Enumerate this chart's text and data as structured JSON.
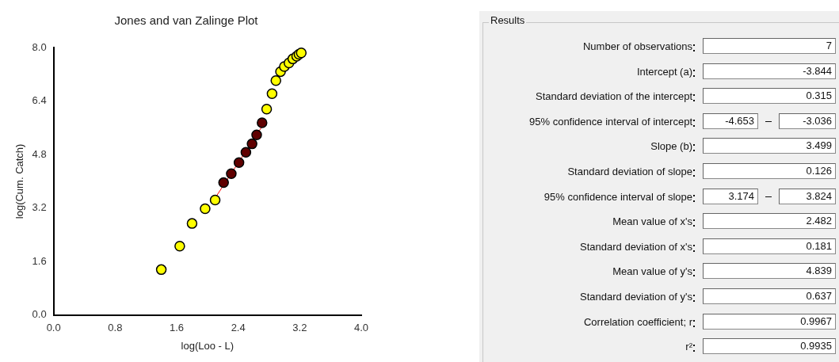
{
  "chart_data": [
    {
      "type": "scatter",
      "title": "Jones and van Zalinge Plot",
      "xlabel": "log(Loo - L)",
      "ylabel": "log(Cum. Catch)",
      "xlim": [
        0,
        4
      ],
      "ylim": [
        0,
        8
      ],
      "xticks": [
        {
          "value": 0,
          "label": "0.0"
        },
        {
          "value": 0.8,
          "label": "0.8"
        },
        {
          "value": 1.6,
          "label": "1.6"
        },
        {
          "value": 2.4,
          "label": "2.4"
        },
        {
          "value": 3.2,
          "label": "3.2"
        },
        {
          "value": 4,
          "label": "4.0"
        }
      ],
      "yticks": [
        {
          "value": 0,
          "label": "0.0"
        },
        {
          "value": 1.6,
          "label": "1.6"
        },
        {
          "value": 3.2,
          "label": "3.2"
        },
        {
          "value": 4.8,
          "label": "4.8"
        },
        {
          "value": 6.4,
          "label": "6.4"
        },
        {
          "value": 8,
          "label": "8.0"
        }
      ],
      "grid": false,
      "legend": false,
      "marker": "circle",
      "series": [
        {
          "type": "line",
          "color": "#ff0000",
          "marker": "none",
          "x": [
            2.1,
            2.75
          ],
          "values": [
            3.5,
            5.78
          ]
        },
        {
          "type": "scatter",
          "color": "#ffff00",
          "x": [
            1.4,
            1.64,
            1.8,
            1.97,
            2.1,
            2.77,
            2.84,
            2.89,
            2.95,
            3.0,
            3.06,
            3.11,
            3.16,
            3.19,
            3.22
          ],
          "values": [
            1.36,
            2.06,
            2.74,
            3.18,
            3.44,
            6.16,
            6.62,
            7.01,
            7.28,
            7.43,
            7.54,
            7.66,
            7.74,
            7.8,
            7.84
          ]
        },
        {
          "type": "scatter",
          "color": "#600000",
          "x": [
            2.21,
            2.31,
            2.41,
            2.5,
            2.58,
            2.64,
            2.71
          ],
          "values": [
            3.96,
            4.23,
            4.56,
            4.87,
            5.12,
            5.39,
            5.75
          ]
        }
      ]
    },
    {
      "type": "other",
      "title": "Results",
      "categories": [
        "Number of observations",
        "Intercept (a)",
        "Standard deviation of the intercept",
        "95% confidence interval of intercept",
        "Slope (b)",
        "Standard deviation of slope",
        "95% confidence interval of slope",
        "Mean value of x's",
        "Standard deviation of x's",
        "Mean value of y's",
        "Standard deviation of y's",
        "Correlation coefficient; r",
        "r²"
      ],
      "cell_labels": [
        [
          "7"
        ],
        [
          "-3.844"
        ],
        [
          "0.315"
        ],
        [
          "-4.653",
          "-3.036"
        ],
        [
          "3.499"
        ],
        [
          "0.126"
        ],
        [
          "3.174",
          "3.824"
        ],
        [
          "2.482"
        ],
        [
          "0.181"
        ],
        [
          "4.839"
        ],
        [
          "0.637"
        ],
        [
          "0.9967"
        ],
        [
          "0.9935"
        ]
      ]
    }
  ]
}
